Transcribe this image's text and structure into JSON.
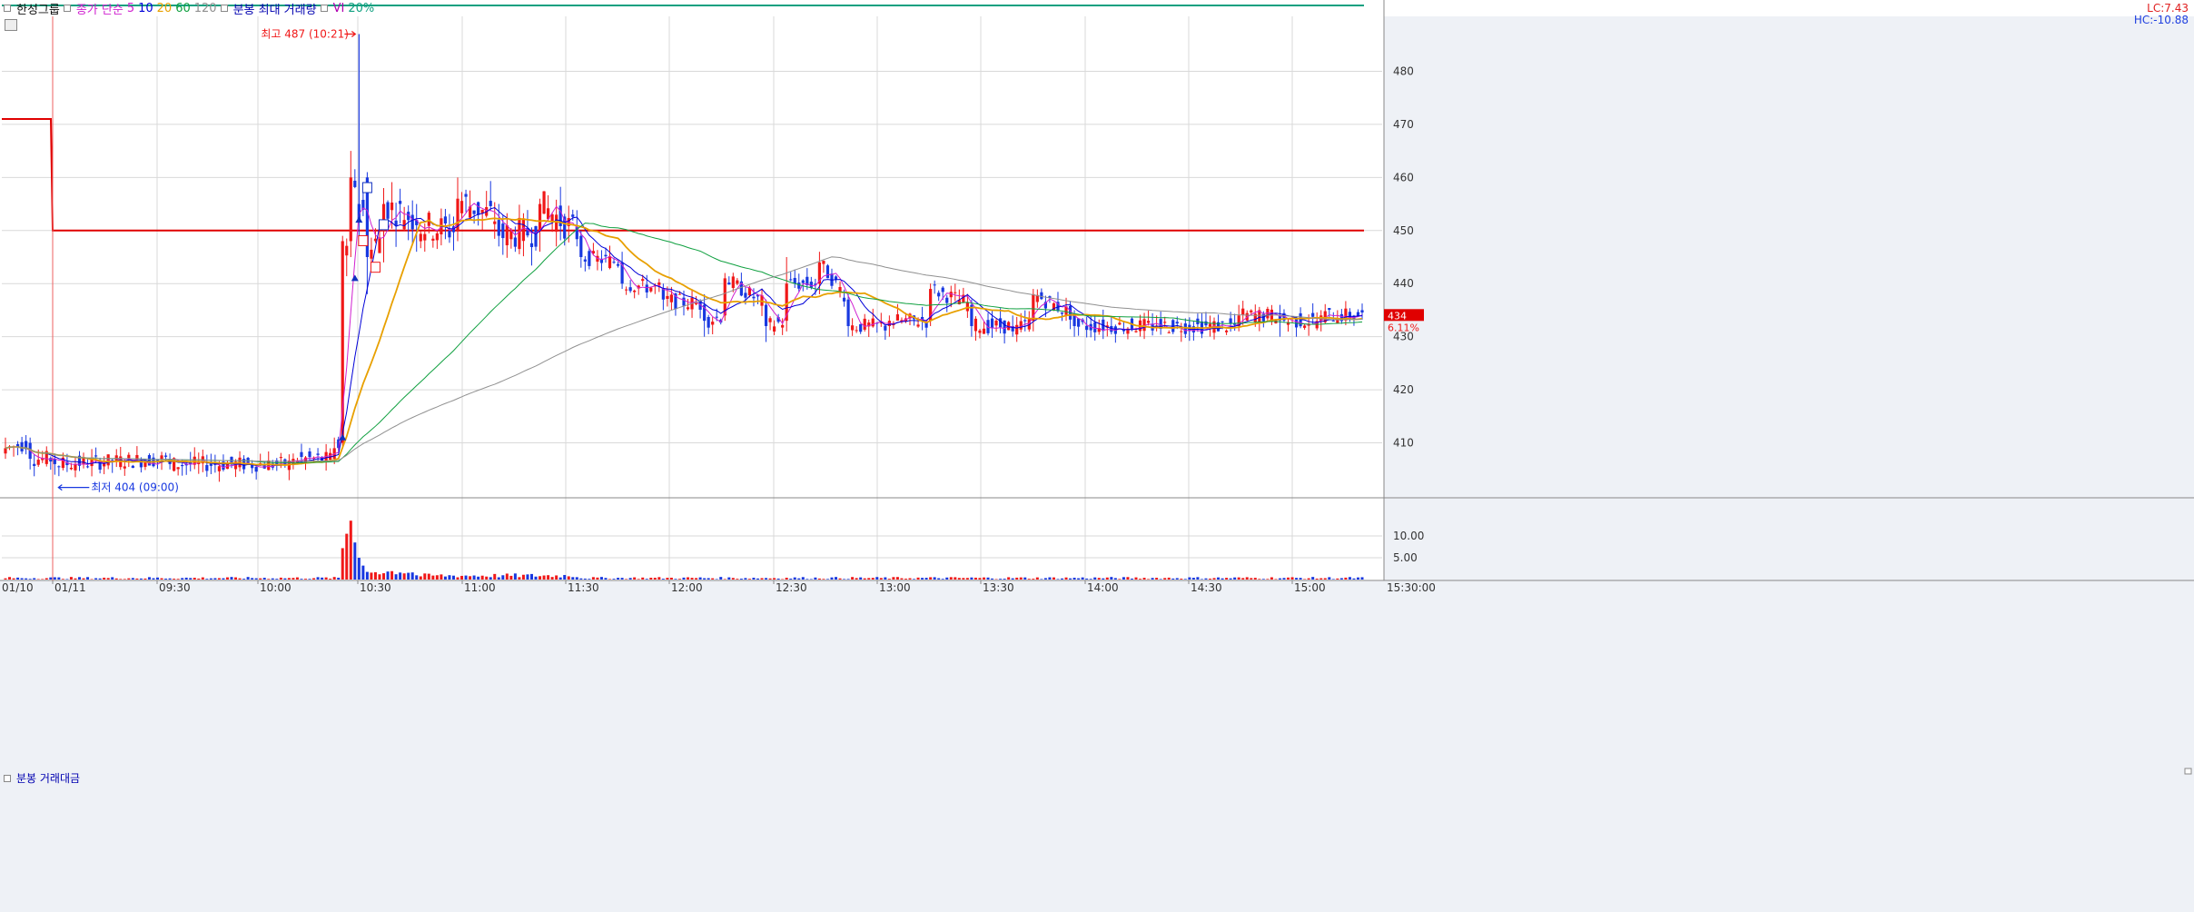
{
  "legend": {
    "stock_name": "한성그룹",
    "ma_label": "종가 단순",
    "ma5": "5",
    "ma10": "10",
    "ma20": "20",
    "ma60": "60",
    "ma120": "120",
    "volume_label": "분봉 최대 거래량",
    "vi_label": "VI",
    "vi_pct": "20%"
  },
  "right_labels": {
    "lc": "LC:7.43",
    "hc": "HC:-10.88"
  },
  "sub_panel": {
    "title": "분봉 거래대금"
  },
  "colors": {
    "up": "#f01818",
    "down": "#1838e0",
    "ma5": "#d020d0",
    "ma10": "#0000d8",
    "ma20": "#e8a000",
    "ma60": "#10a040",
    "ma120": "#909090",
    "ref_line": "#e00000",
    "vi_line": "#10a080",
    "grid": "#d9d9d9",
    "axis_bg": "#eef1f6",
    "price_tag": "#e00000"
  },
  "chart_data": {
    "type": "candlestick",
    "y_axis": {
      "min": 400,
      "max": 490,
      "ticks": [
        410,
        420,
        430,
        440,
        450,
        460,
        470,
        480
      ]
    },
    "x_axis": {
      "labels": [
        "01/10",
        "01/11",
        "09:30",
        "10:00",
        "10:30",
        "11:00",
        "11:30",
        "12:00",
        "12:30",
        "13:00",
        "13:30",
        "14:00",
        "14:30",
        "15:00",
        "15:30:00"
      ]
    },
    "annotations": {
      "high": {
        "text": "최고 487 (10:21)",
        "value": 487
      },
      "low": {
        "text": "최저 404 (09:00)",
        "value": 404
      }
    },
    "reference_line": {
      "prev_value": 471,
      "value": 450
    },
    "current_price": {
      "value": "434",
      "change": "6.11%"
    },
    "volume_axis": {
      "ticks": [
        "5.00",
        "10.00"
      ]
    },
    "anchor_series": [
      {
        "t": 0,
        "o": 408,
        "c": 409,
        "h": 411,
        "l": 407
      },
      {
        "t": 6,
        "o": 410,
        "c": 407,
        "h": 411,
        "l": 405
      },
      {
        "t": 12,
        "o": 407,
        "c": 406,
        "h": 408,
        "l": 404
      },
      {
        "t": 40,
        "o": 407,
        "c": 406,
        "h": 408,
        "l": 405
      },
      {
        "t": 70,
        "o": 406,
        "c": 407,
        "h": 408,
        "l": 405
      },
      {
        "t": 80,
        "o": 407,
        "c": 409,
        "h": 411,
        "l": 406
      },
      {
        "t": 82,
        "o": 410,
        "c": 448,
        "h": 449,
        "l": 409
      },
      {
        "t": 84,
        "o": 448,
        "c": 460,
        "h": 465,
        "l": 445
      },
      {
        "t": 86,
        "o": 455,
        "c": 452,
        "h": 487,
        "l": 449
      },
      {
        "t": 88,
        "o": 460,
        "c": 445,
        "h": 461,
        "l": 438
      },
      {
        "t": 92,
        "o": 450,
        "c": 455,
        "h": 458,
        "l": 444
      },
      {
        "t": 100,
        "o": 452,
        "c": 451,
        "h": 455,
        "l": 446
      },
      {
        "t": 110,
        "o": 450,
        "c": 456,
        "h": 460,
        "l": 448
      },
      {
        "t": 120,
        "o": 452,
        "c": 449,
        "h": 455,
        "l": 447
      },
      {
        "t": 130,
        "o": 450,
        "c": 455,
        "h": 456,
        "l": 446
      },
      {
        "t": 140,
        "o": 449,
        "c": 445,
        "h": 450,
        "l": 443
      },
      {
        "t": 150,
        "o": 444,
        "c": 440,
        "h": 446,
        "l": 439
      },
      {
        "t": 160,
        "o": 439,
        "c": 437,
        "h": 440,
        "l": 435
      },
      {
        "t": 170,
        "o": 436,
        "c": 433,
        "h": 438,
        "l": 430
      },
      {
        "t": 175,
        "o": 434,
        "c": 441,
        "h": 442,
        "l": 433
      },
      {
        "t": 185,
        "o": 436,
        "c": 432,
        "h": 437,
        "l": 429
      },
      {
        "t": 190,
        "o": 433,
        "c": 440,
        "h": 445,
        "l": 431
      },
      {
        "t": 198,
        "o": 440,
        "c": 444,
        "h": 446,
        "l": 438
      },
      {
        "t": 205,
        "o": 437,
        "c": 432,
        "h": 438,
        "l": 430
      },
      {
        "t": 215,
        "o": 432,
        "c": 433,
        "h": 434,
        "l": 430
      },
      {
        "t": 225,
        "o": 433,
        "c": 439,
        "h": 440,
        "l": 432
      },
      {
        "t": 235,
        "o": 436,
        "c": 432,
        "h": 437,
        "l": 430
      },
      {
        "t": 245,
        "o": 432,
        "c": 431,
        "h": 434,
        "l": 430
      },
      {
        "t": 250,
        "o": 433,
        "c": 438,
        "h": 439,
        "l": 431
      },
      {
        "t": 260,
        "o": 434,
        "c": 432,
        "h": 435,
        "l": 430
      },
      {
        "t": 280,
        "o": 432,
        "c": 432,
        "h": 434,
        "l": 431
      },
      {
        "t": 300,
        "o": 432,
        "c": 434,
        "h": 436,
        "l": 431
      },
      {
        "t": 310,
        "o": 434,
        "c": 433,
        "h": 436,
        "l": 430
      },
      {
        "t": 320,
        "o": 433,
        "c": 434,
        "h": 435,
        "l": 431
      }
    ]
  }
}
